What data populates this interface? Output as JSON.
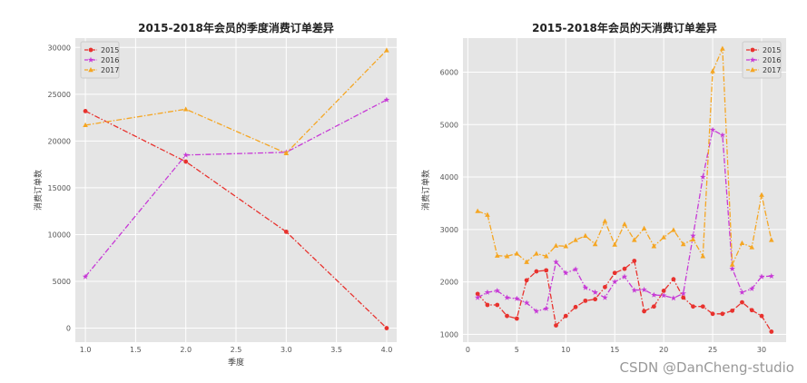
{
  "watermark": "CSDN @DanCheng-studio",
  "colors": {
    "2015": "#e8322e",
    "2016": "#c73ad6",
    "2017": "#f5a623"
  },
  "chart_data": [
    {
      "type": "line",
      "title": "2015-2018年会员的季度消费订单差异",
      "xlabel": "季度",
      "ylabel": "消费订单数",
      "xlim": [
        0.9,
        4.1
      ],
      "ylim": [
        -1500,
        31000
      ],
      "xticks": [
        1.0,
        1.5,
        2.0,
        2.5,
        3.0,
        3.5,
        4.0
      ],
      "xtick_labels": [
        "1.0",
        "1.5",
        "2.0",
        "2.5",
        "3.0",
        "3.5",
        "4.0"
      ],
      "yticks": [
        0,
        5000,
        10000,
        15000,
        20000,
        25000,
        30000
      ],
      "ytick_labels": [
        "0",
        "5000",
        "10000",
        "15000",
        "20000",
        "25000",
        "30000"
      ],
      "grid": true,
      "legend": "top-left",
      "x": [
        1,
        2,
        3,
        4
      ],
      "series": [
        {
          "name": "2015",
          "values": [
            23200,
            17800,
            10300,
            0
          ]
        },
        {
          "name": "2016",
          "values": [
            5500,
            18500,
            18800,
            24400
          ]
        },
        {
          "name": "2017",
          "values": [
            21700,
            23400,
            18700,
            29700
          ]
        }
      ]
    },
    {
      "type": "line",
      "title": "2015-2018年会员的天消费订单差异",
      "xlabel": "",
      "ylabel": "消费订单数",
      "xlim": [
        -0.5,
        32.5
      ],
      "ylim": [
        850,
        6650
      ],
      "xticks": [
        0,
        5,
        10,
        15,
        20,
        25,
        30
      ],
      "xtick_labels": [
        "0",
        "5",
        "10",
        "15",
        "20",
        "25",
        "30"
      ],
      "yticks": [
        1000,
        2000,
        3000,
        4000,
        5000,
        6000
      ],
      "ytick_labels": [
        "1000",
        "2000",
        "3000",
        "4000",
        "5000",
        "6000"
      ],
      "grid": true,
      "legend": "top-right",
      "x": [
        1,
        2,
        3,
        4,
        5,
        6,
        7,
        8,
        9,
        10,
        11,
        12,
        13,
        14,
        15,
        16,
        17,
        18,
        19,
        20,
        21,
        22,
        23,
        24,
        25,
        26,
        27,
        28,
        29,
        30,
        31
      ],
      "series": [
        {
          "name": "2015",
          "values": [
            1770,
            1560,
            1560,
            1350,
            1300,
            2030,
            2200,
            2220,
            1170,
            1350,
            1520,
            1640,
            1670,
            1900,
            2170,
            2250,
            2400,
            1440,
            1530,
            1830,
            2050,
            1700,
            1530,
            1530,
            1390,
            1390,
            1450,
            1610,
            1460,
            1350,
            1050
          ]
        },
        {
          "name": "2016",
          "values": [
            1700,
            1800,
            1830,
            1700,
            1680,
            1600,
            1440,
            1490,
            2380,
            2170,
            2240,
            1890,
            1800,
            1700,
            2000,
            2100,
            1840,
            1850,
            1750,
            1740,
            1690,
            1780,
            2880,
            4000,
            4900,
            4800,
            2250,
            1800,
            1870,
            2100,
            2110
          ]
        },
        {
          "name": "2017",
          "values": [
            3350,
            3280,
            2500,
            2490,
            2540,
            2380,
            2540,
            2490,
            2690,
            2680,
            2800,
            2880,
            2720,
            3160,
            2710,
            3100,
            2800,
            3020,
            2680,
            2850,
            2990,
            2720,
            2810,
            2490,
            6020,
            6450,
            2330,
            2740,
            2660,
            3660,
            2800
          ]
        }
      ]
    }
  ]
}
